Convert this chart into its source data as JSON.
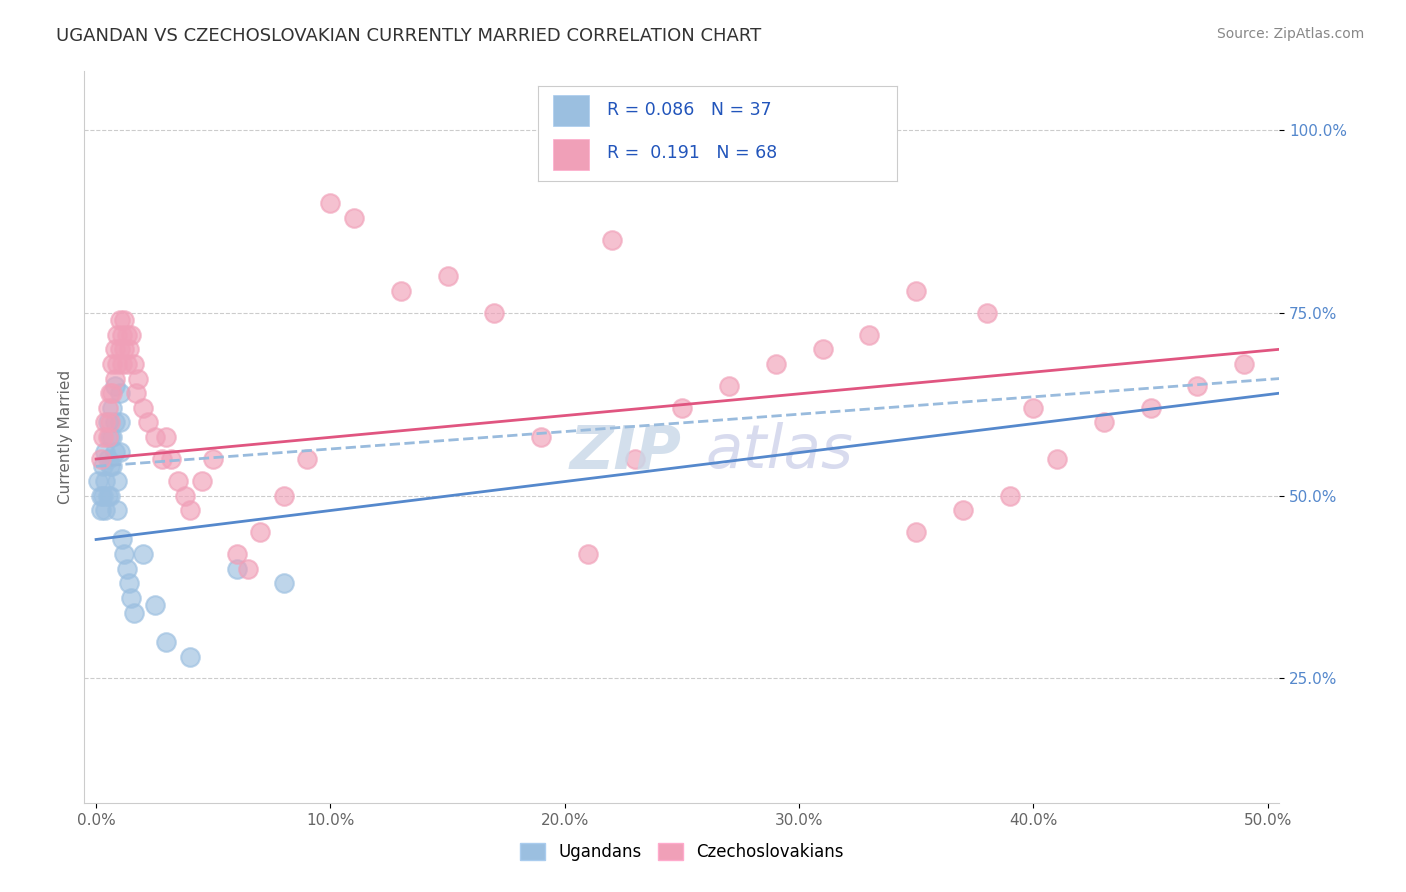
{
  "title": "UGANDAN VS CZECHOSLOVAKIAN CURRENTLY MARRIED CORRELATION CHART",
  "source_text": "Source: ZipAtlas.com",
  "ylabel": "Currently Married",
  "x_tick_labels": [
    "0.0%",
    "10.0%",
    "20.0%",
    "30.0%",
    "40.0%",
    "50.0%"
  ],
  "x_tick_values": [
    0.0,
    0.1,
    0.2,
    0.3,
    0.4,
    0.5
  ],
  "y_tick_labels": [
    "25.0%",
    "50.0%",
    "75.0%",
    "100.0%"
  ],
  "y_tick_values": [
    0.25,
    0.5,
    0.75,
    1.0
  ],
  "xlim": [
    -0.005,
    0.505
  ],
  "ylim": [
    0.08,
    1.08
  ],
  "legend_R_ugandan": "0.086",
  "legend_N_ugandan": "37",
  "legend_R_czech": "0.191",
  "legend_N_czech": "68",
  "ugandan_color": "#9bbfe0",
  "czech_color": "#f0a0b8",
  "ugandan_line_color": "#5588cc",
  "czech_line_color": "#e05580",
  "dash_line_color": "#99bbdd",
  "ugandan_x": [
    0.001,
    0.002,
    0.002,
    0.003,
    0.003,
    0.004,
    0.004,
    0.004,
    0.005,
    0.005,
    0.005,
    0.006,
    0.006,
    0.006,
    0.007,
    0.007,
    0.007,
    0.008,
    0.008,
    0.008,
    0.009,
    0.009,
    0.01,
    0.01,
    0.01,
    0.011,
    0.012,
    0.013,
    0.014,
    0.015,
    0.016,
    0.02,
    0.025,
    0.03,
    0.04,
    0.06,
    0.08
  ],
  "ugandan_y": [
    0.52,
    0.48,
    0.5,
    0.54,
    0.5,
    0.56,
    0.52,
    0.48,
    0.6,
    0.55,
    0.5,
    0.58,
    0.54,
    0.5,
    0.62,
    0.58,
    0.54,
    0.65,
    0.6,
    0.56,
    0.52,
    0.48,
    0.64,
    0.6,
    0.56,
    0.44,
    0.42,
    0.4,
    0.38,
    0.36,
    0.34,
    0.42,
    0.35,
    0.3,
    0.28,
    0.4,
    0.38
  ],
  "czech_x": [
    0.002,
    0.003,
    0.004,
    0.005,
    0.005,
    0.006,
    0.006,
    0.007,
    0.007,
    0.008,
    0.008,
    0.009,
    0.009,
    0.01,
    0.01,
    0.011,
    0.011,
    0.012,
    0.012,
    0.013,
    0.013,
    0.014,
    0.015,
    0.016,
    0.017,
    0.018,
    0.02,
    0.022,
    0.025,
    0.028,
    0.03,
    0.032,
    0.035,
    0.038,
    0.04,
    0.045,
    0.05,
    0.06,
    0.065,
    0.07,
    0.08,
    0.09,
    0.1,
    0.11,
    0.13,
    0.15,
    0.17,
    0.19,
    0.21,
    0.23,
    0.25,
    0.27,
    0.29,
    0.31,
    0.33,
    0.35,
    0.37,
    0.39,
    0.41,
    0.43,
    0.45,
    0.47,
    0.49,
    0.2,
    0.22,
    0.35,
    0.38,
    0.4
  ],
  "czech_y": [
    0.55,
    0.58,
    0.6,
    0.62,
    0.58,
    0.64,
    0.6,
    0.68,
    0.64,
    0.7,
    0.66,
    0.72,
    0.68,
    0.74,
    0.7,
    0.72,
    0.68,
    0.74,
    0.7,
    0.72,
    0.68,
    0.7,
    0.72,
    0.68,
    0.64,
    0.66,
    0.62,
    0.6,
    0.58,
    0.55,
    0.58,
    0.55,
    0.52,
    0.5,
    0.48,
    0.52,
    0.55,
    0.42,
    0.4,
    0.45,
    0.5,
    0.55,
    0.9,
    0.88,
    0.78,
    0.8,
    0.75,
    0.58,
    0.42,
    0.55,
    0.62,
    0.65,
    0.68,
    0.7,
    0.72,
    0.45,
    0.48,
    0.5,
    0.55,
    0.6,
    0.62,
    0.65,
    0.68,
    0.95,
    0.85,
    0.78,
    0.75,
    0.62
  ]
}
